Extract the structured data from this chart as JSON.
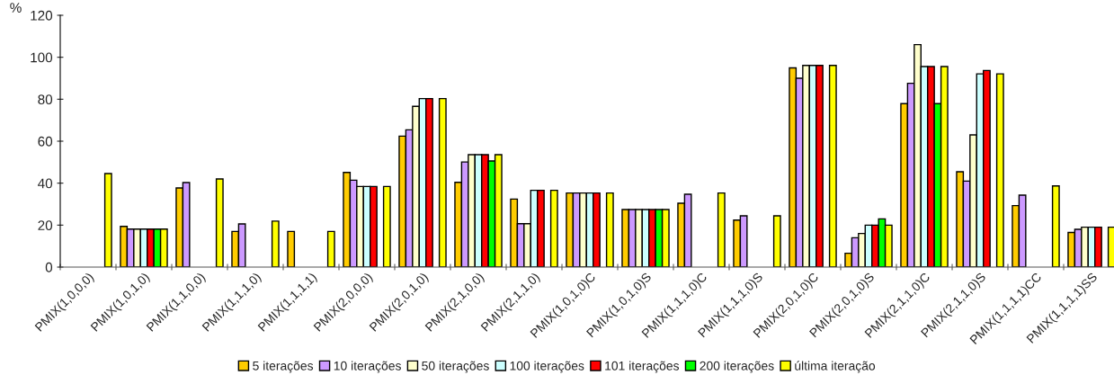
{
  "chart_data": {
    "type": "bar",
    "ylabel": "%",
    "categories": [
      "PMIX(1,0,0,0)",
      "PMIX(1,0,1,0)",
      "PMIX(1,1,0,0)",
      "PMIX(1,1,1,0)",
      "PMIX(1,1,1,1)",
      "PMIX(2,0,0,0)",
      "PMIX(2,0,1,0)",
      "PMIX(2,1,0,0)",
      "PMIX(2,1,1,0)",
      "PMIX(1,0,1,0)C",
      "PMIX(1,0,1,0)S",
      "PMIX(1,1,1,0)C",
      "PMIX(1,1,1,0)S",
      "PMIX(2,0,1,0)C",
      "PMIX(2,0,1,0)S",
      "PMIX(2,1,1,0)C",
      "PMIX(2,1,1,0)S",
      "PMIX(1,1,1,1)CC",
      "PMIX(1,1,1,1)SS"
    ],
    "series": [
      {
        "name": "5 iterações",
        "color": "#ffcc00",
        "values": [
          null,
          19.4,
          37.7,
          17,
          17,
          45.1,
          62.4,
          40.4,
          32.4,
          35.3,
          27.4,
          30.4,
          22.4,
          94.9,
          6.6,
          77.9,
          45.4,
          29.3,
          16.5
        ]
      },
      {
        "name": "10 iterações",
        "color": "#cc99ff",
        "values": [
          null,
          18.1,
          40.3,
          20.6,
          null,
          41.4,
          65.4,
          50.1,
          20.7,
          35.3,
          27.4,
          34.7,
          24.4,
          90,
          14,
          87.6,
          41,
          34.3,
          18
        ]
      },
      {
        "name": "50 iterações",
        "color": "#ffffcc",
        "values": [
          null,
          18.1,
          null,
          null,
          null,
          38.4,
          76.6,
          53.6,
          20.7,
          35.3,
          27.4,
          null,
          null,
          96.1,
          16,
          106,
          63,
          null,
          19
        ]
      },
      {
        "name": "100 iterações",
        "color": "#ccffff",
        "values": [
          null,
          18.1,
          null,
          null,
          null,
          38.4,
          80.3,
          53.6,
          36.6,
          35.3,
          27.4,
          null,
          null,
          96.1,
          20,
          95.6,
          92.1,
          null,
          19
        ]
      },
      {
        "name": "101 iterações",
        "color": "#ff0000",
        "values": [
          null,
          18.1,
          null,
          null,
          null,
          38.4,
          80.3,
          53.6,
          36.6,
          35.3,
          27.4,
          null,
          null,
          96.1,
          20,
          95.6,
          93.7,
          null,
          19
        ]
      },
      {
        "name": "200 iterações",
        "color": "#00ff00",
        "values": [
          null,
          18.1,
          null,
          null,
          null,
          null,
          null,
          50.6,
          null,
          null,
          27.4,
          null,
          null,
          null,
          23,
          77.9,
          null,
          null,
          null
        ]
      },
      {
        "name": "última iteração",
        "color": "#ffff00",
        "values": [
          44.6,
          18.1,
          42,
          21.9,
          17,
          38.4,
          80.3,
          53.6,
          36.6,
          35.3,
          27.4,
          35.3,
          24.4,
          96.1,
          20,
          95.6,
          92.1,
          38.7,
          19
        ]
      }
    ],
    "ylim": [
      0,
      120
    ],
    "yticks": [
      0,
      20,
      40,
      60,
      80,
      100,
      120
    ],
    "grid": false,
    "legend": "bottom"
  }
}
